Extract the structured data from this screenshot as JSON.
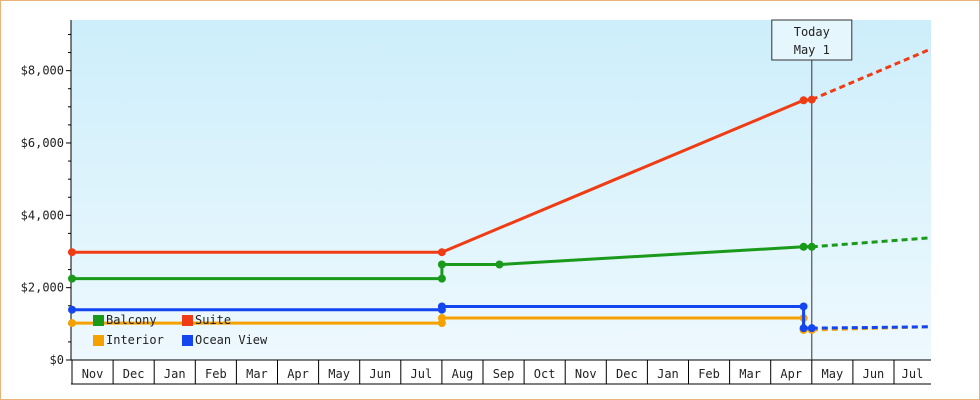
{
  "chart_data": {
    "type": "line",
    "y_axis": {
      "min": 0,
      "max": 9400,
      "ticks": [
        0,
        2000,
        4000,
        6000,
        8000
      ],
      "tick_labels": [
        "$0",
        "$2,000",
        "$4,000",
        "$6,000",
        "$8,000"
      ]
    },
    "x_axis": {
      "months": [
        "Nov",
        "Dec",
        "Jan",
        "Feb",
        "Mar",
        "Apr",
        "May",
        "Jun",
        "Jul",
        "Aug",
        "Sep",
        "Oct",
        "Nov",
        "Dec",
        "Jan",
        "Feb",
        "Mar",
        "Apr",
        "May",
        "Jun",
        "Jul"
      ],
      "range_months": [
        0,
        20.9
      ]
    },
    "today_marker": {
      "label_line1": "Today",
      "label_line2": "May 1",
      "x": 18.0
    },
    "series": [
      {
        "name": "Balcony",
        "color": "#1a9a1a",
        "points": [
          [
            0,
            2250
          ],
          [
            9.0,
            2250
          ],
          [
            9.0,
            2640
          ],
          [
            10.4,
            2640
          ],
          [
            17.8,
            3130
          ],
          [
            18.0,
            3130
          ]
        ],
        "forecast": [
          [
            18.0,
            3130
          ],
          [
            20.9,
            3380
          ]
        ]
      },
      {
        "name": "Suite",
        "color": "#f03c14",
        "points": [
          [
            0,
            2980
          ],
          [
            9.0,
            2980
          ],
          [
            17.8,
            7180
          ],
          [
            18.0,
            7200
          ]
        ],
        "forecast": [
          [
            18.0,
            7200
          ],
          [
            20.9,
            8600
          ]
        ]
      },
      {
        "name": "Interior",
        "color": "#f5a100",
        "points": [
          [
            0,
            1020
          ],
          [
            9.0,
            1020
          ],
          [
            9.0,
            1160
          ],
          [
            17.8,
            1160
          ],
          [
            17.8,
            830
          ],
          [
            18.0,
            830
          ]
        ],
        "forecast": [
          [
            18.0,
            830
          ],
          [
            20.9,
            920
          ]
        ]
      },
      {
        "name": "Ocean View",
        "color": "#1446f0",
        "points": [
          [
            0,
            1390
          ],
          [
            9.0,
            1390
          ],
          [
            9.0,
            1480
          ],
          [
            17.8,
            1480
          ],
          [
            17.8,
            880
          ],
          [
            18.0,
            880
          ]
        ],
        "forecast": [
          [
            18.0,
            880
          ],
          [
            20.9,
            920
          ]
        ]
      }
    ],
    "legend": {
      "placement": "bottom-left"
    },
    "background_gradient": [
      "#cdeefb",
      "#eef9fe"
    ],
    "grid": false
  }
}
